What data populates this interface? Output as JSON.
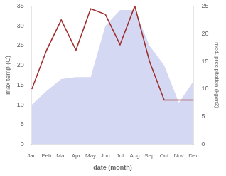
{
  "chart_data": {
    "type": "line",
    "xlabel": "date (month)",
    "ylabel": "max temp (C)",
    "y2label": "med. precipitation (kg/m2)",
    "categories": [
      "Jan",
      "Feb",
      "Mar",
      "Apr",
      "May",
      "Jun",
      "Jul",
      "Aug",
      "Sep",
      "Oct",
      "Nov",
      "Dec"
    ],
    "series": [
      {
        "type": "area",
        "color": "#b0b8e8",
        "values": [
          10,
          13.5,
          16.5,
          17,
          17,
          30,
          34,
          34,
          25,
          20,
          10.5,
          16
        ]
      },
      {
        "type": "line",
        "color": "#a03030",
        "axis": "y2",
        "values": [
          10,
          17,
          22.5,
          17,
          24.5,
          23.5,
          18,
          25,
          15,
          8,
          8,
          8
        ]
      }
    ],
    "ylim": [
      0,
      35
    ],
    "yticks": [
      0,
      5,
      10,
      15,
      20,
      25,
      30,
      35
    ],
    "y2lim": [
      0,
      25
    ],
    "y2ticks": [
      0,
      5,
      10,
      15,
      20,
      25
    ],
    "grid": false,
    "legend": false
  }
}
